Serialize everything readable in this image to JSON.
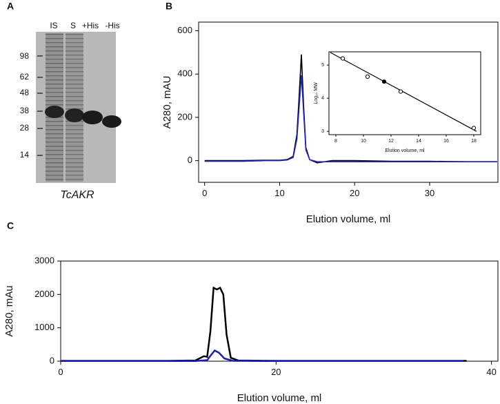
{
  "gel_panel": {
    "panel_label": "A",
    "lanes": [
      "IS",
      "S",
      "+His",
      "-His"
    ],
    "markers": [
      98,
      62,
      48,
      38,
      28,
      14
    ],
    "caption": "TcAKR"
  },
  "chart_data": [
    {
      "type": "line",
      "panel_label": "B",
      "xlabel": "Elution volume, ml",
      "ylabel": "A280, mAU",
      "xlim": [
        -0.8,
        39.1
      ],
      "ylim": [
        -100,
        640
      ],
      "xticks": [
        0,
        10,
        20,
        30
      ],
      "yticks": [
        0,
        200,
        400,
        600
      ],
      "series": [
        {
          "color": "#000000",
          "x": [
            0,
            5,
            8,
            10,
            11,
            11.8,
            12.3,
            12.6,
            12.9,
            13.2,
            13.5,
            14,
            15,
            17,
            20,
            25,
            30,
            35,
            39
          ],
          "values": [
            0,
            0,
            2,
            2,
            5,
            20,
            120,
            300,
            490,
            250,
            60,
            5,
            -10,
            0,
            0,
            -3,
            -3,
            -5,
            -5
          ]
        },
        {
          "color": "#2424c8",
          "x": [
            0,
            5,
            8,
            10,
            11,
            11.8,
            12.3,
            12.6,
            12.9,
            13.2,
            13.5,
            14,
            15,
            20,
            25,
            30,
            35,
            39
          ],
          "values": [
            -3,
            -3,
            0,
            0,
            3,
            15,
            100,
            250,
            395,
            220,
            50,
            5,
            -5,
            -5,
            -5,
            -5,
            -5,
            -5
          ]
        }
      ]
    },
    {
      "type": "scatter",
      "xlabel": "Elution volume, ml",
      "ylabel": "Log₁₀ MW",
      "xlim": [
        7.5,
        18.5
      ],
      "ylim": [
        2.9,
        5.4
      ],
      "xticks": [
        8,
        10,
        12,
        14,
        16,
        18
      ],
      "yticks": [
        3,
        4,
        5
      ],
      "fit_line": {
        "color": "#000000",
        "x": [
          7.6,
          18.2
        ],
        "values": [
          5.38,
          3.0
        ]
      },
      "series": [
        {
          "color": "#000000",
          "fill": "#ffffff",
          "x": [
            8.5,
            10.3,
            12.7,
            18.0
          ],
          "values": [
            5.2,
            4.65,
            4.2,
            3.1
          ]
        },
        {
          "color": "#000000",
          "fill": "#000000",
          "x": [
            11.5
          ],
          "values": [
            4.5
          ]
        }
      ]
    },
    {
      "type": "line",
      "panel_label": "C",
      "xlabel": "Elution volume, ml",
      "ylabel": "A280, mAu",
      "xlim": [
        0,
        40.6
      ],
      "ylim": [
        0,
        3000
      ],
      "xticks": [
        0,
        20,
        40
      ],
      "yticks": [
        0,
        1000,
        2000,
        3000
      ],
      "series": [
        {
          "color": "#000000",
          "x": [
            0,
            10,
            12.5,
            13.3,
            13.6,
            13.9,
            14.2,
            14.5,
            14.8,
            15.1,
            15.4,
            15.8,
            16.5,
            20,
            30,
            37.7
          ],
          "values": [
            10,
            10,
            20,
            150,
            130,
            900,
            2200,
            2150,
            2200,
            2000,
            800,
            100,
            20,
            10,
            10,
            10
          ]
        },
        {
          "color": "#1c1cb4",
          "x": [
            0,
            12.5,
            13.6,
            14,
            14.3,
            14.7,
            15.2,
            16,
            20,
            37.4
          ],
          "values": [
            5,
            5,
            30,
            200,
            320,
            250,
            80,
            10,
            5,
            5
          ]
        }
      ]
    }
  ]
}
